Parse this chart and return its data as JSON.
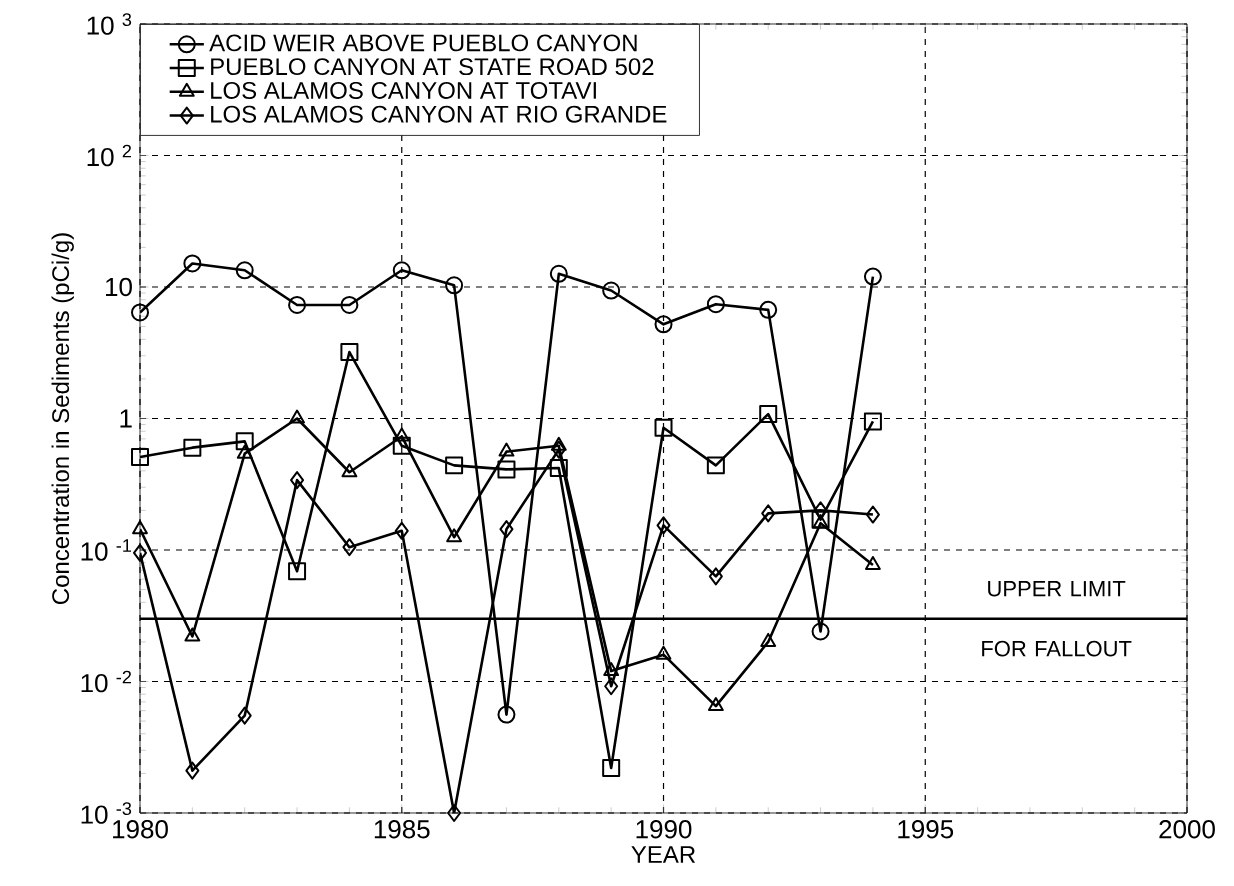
{
  "chart_data": {
    "type": "line",
    "xlabel": "YEAR",
    "ylabel": "Concentration in Sediments (pCi/g)",
    "x": [
      1980,
      1981,
      1982,
      1983,
      1984,
      1985,
      1986,
      1987,
      1988,
      1989,
      1990,
      1991,
      1992,
      1993,
      1994
    ],
    "series": [
      {
        "name": "ACID WEIR ABOVE PUEBLO CANYON",
        "color": "#000000",
        "marker": "circle",
        "values": [
          6.4,
          15.1,
          13.4,
          7.3,
          7.3,
          13.4,
          10.3,
          0.0056,
          12.6,
          9.4,
          5.2,
          7.4,
          6.7,
          0.024,
          12.0
        ]
      },
      {
        "name": "PUEBLO CANYON AT STATE ROAD 502",
        "color": "#000000",
        "marker": "square",
        "values": [
          0.51,
          0.6,
          0.67,
          0.069,
          3.2,
          0.62,
          0.44,
          0.41,
          0.42,
          0.0022,
          0.85,
          0.44,
          1.08,
          0.17,
          0.95
        ]
      },
      {
        "name": "LOS ALAMOS CANYON AT TOTAVI",
        "color": "#000000",
        "marker": "triangle",
        "values": [
          0.144,
          0.022,
          0.54,
          1.0,
          0.39,
          0.73,
          0.125,
          0.56,
          0.62,
          0.012,
          0.016,
          0.0065,
          0.02,
          0.16,
          0.077
        ]
      },
      {
        "name": "LOS ALAMOS CANYON AT RIO GRANDE",
        "color": "#000000",
        "marker": "diamond",
        "values": [
          0.095,
          0.0021,
          0.0055,
          0.34,
          0.105,
          0.14,
          0.001,
          0.144,
          0.58,
          0.0092,
          0.154,
          0.063,
          0.19,
          0.2,
          0.186
        ]
      }
    ],
    "xlim": [
      1980,
      2000
    ],
    "xticks": [
      1980,
      1985,
      1990,
      1995,
      2000
    ],
    "ylim": [
      0.001,
      1000
    ],
    "yticks": [
      {
        "value": 0.001,
        "label": "10 $^{-3}$"
      },
      {
        "value": 0.01,
        "label": "10 $^{-2}$"
      },
      {
        "value": 0.1,
        "label": "10 $^{-1}$"
      },
      1,
      10,
      {
        "value": 100,
        "label": "10 $^{2}$"
      },
      {
        "value": 1000,
        "label": "10 $^{3}$"
      }
    ],
    "log": "y",
    "grid": true,
    "legend": "top left",
    "line_style": "solid",
    "ref_lines": [
      {
        "axis": "y",
        "value": 0.03,
        "label": "UPPER LIMIT FOR FALLOUT",
        "color": "#000000",
        "line_style": "solid"
      }
    ]
  }
}
